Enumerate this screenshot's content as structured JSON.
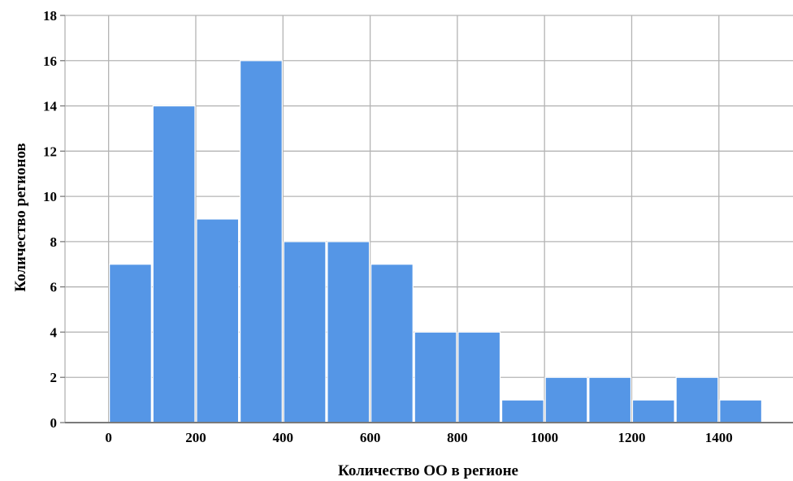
{
  "chart_data": {
    "type": "bar",
    "subtype": "histogram",
    "xlabel": "Количество ОО в регионе",
    "ylabel": "Количество регионов",
    "bin_width": 100,
    "bins": [
      {
        "from": 0,
        "to": 100,
        "count": 7
      },
      {
        "from": 100,
        "to": 200,
        "count": 14
      },
      {
        "from": 200,
        "to": 300,
        "count": 9
      },
      {
        "from": 300,
        "to": 400,
        "count": 16
      },
      {
        "from": 400,
        "to": 500,
        "count": 8
      },
      {
        "from": 500,
        "to": 600,
        "count": 8
      },
      {
        "from": 600,
        "to": 700,
        "count": 7
      },
      {
        "from": 700,
        "to": 800,
        "count": 4
      },
      {
        "from": 800,
        "to": 900,
        "count": 4
      },
      {
        "from": 900,
        "to": 1000,
        "count": 1
      },
      {
        "from": 1000,
        "to": 1100,
        "count": 2
      },
      {
        "from": 1100,
        "to": 1200,
        "count": 2
      },
      {
        "from": 1200,
        "to": 1300,
        "count": 1
      },
      {
        "from": 1300,
        "to": 1400,
        "count": 2
      },
      {
        "from": 1400,
        "to": 1500,
        "count": 1
      }
    ],
    "xticks": [
      0,
      200,
      400,
      600,
      800,
      1000,
      1200,
      1400
    ],
    "yticks": [
      0,
      2,
      4,
      6,
      8,
      10,
      12,
      14,
      16,
      18
    ],
    "xlim": [
      -100,
      1570
    ],
    "ylim": [
      0,
      18
    ],
    "grid": true,
    "colors": {
      "bar_fill": "#5596E6",
      "bar_edge": "#ffffff",
      "grid": "#b4b4b4",
      "axis": "#7a7a7a"
    }
  }
}
